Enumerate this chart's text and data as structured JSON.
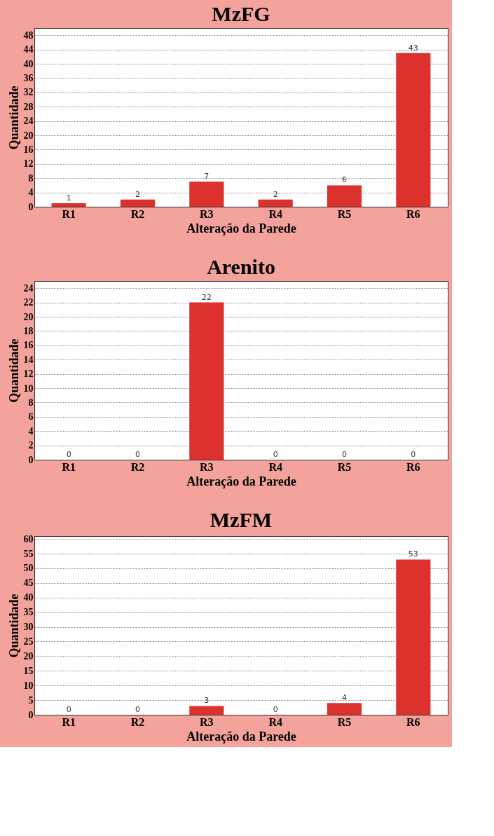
{
  "chart_data": [
    {
      "type": "bar",
      "title": "MzFG",
      "xlabel": "Alteração da Parede",
      "ylabel": "Quantidade",
      "categories": [
        "R1",
        "R2",
        "R3",
        "R4",
        "R5",
        "R6"
      ],
      "values": [
        1,
        2,
        7,
        2,
        6,
        43
      ],
      "color": "#dc312c",
      "ylim": [
        0,
        50
      ],
      "yticks": [
        0,
        4,
        8,
        12,
        16,
        20,
        24,
        28,
        32,
        36,
        40,
        44,
        48
      ],
      "grid": "y",
      "data_labels": true
    },
    {
      "type": "bar",
      "title": "Arenito",
      "xlabel": "Alteração da Parede",
      "ylabel": "Quantidade",
      "categories": [
        "R1",
        "R2",
        "R3",
        "R4",
        "R5",
        "R6"
      ],
      "values": [
        0,
        0,
        22,
        0,
        0,
        0
      ],
      "color": "#dc312c",
      "ylim": [
        0,
        25
      ],
      "yticks": [
        0,
        2,
        4,
        6,
        8,
        10,
        12,
        14,
        16,
        18,
        20,
        22,
        24
      ],
      "grid": "y",
      "data_labels": true
    },
    {
      "type": "bar",
      "title": "MzFM",
      "xlabel": "Alteração da Parede",
      "ylabel": "Quantidade",
      "categories": [
        "R1",
        "R2",
        "R3",
        "R4",
        "R5",
        "R6"
      ],
      "values": [
        0,
        0,
        3,
        0,
        4,
        53
      ],
      "color": "#dc312c",
      "ylim": [
        0,
        61
      ],
      "yticks": [
        0,
        5,
        10,
        15,
        20,
        25,
        30,
        35,
        40,
        45,
        50,
        55,
        60
      ],
      "grid": "y",
      "data_labels": true
    }
  ]
}
